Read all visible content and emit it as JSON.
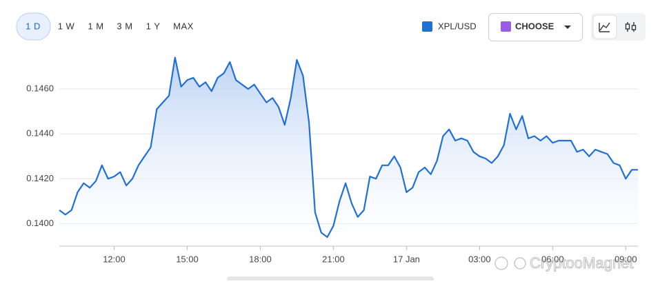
{
  "toolbar": {
    "ranges": [
      "1 D",
      "1 W",
      "1 M",
      "3 M",
      "1 Y",
      "MAX"
    ],
    "choose": "CHOOSE"
  },
  "watermark": "CryptooMagnet",
  "chart_data": {
    "type": "area",
    "x": [
      9.75,
      10,
      10.25,
      10.5,
      10.75,
      11,
      11.25,
      11.5,
      11.75,
      12,
      12.25,
      12.5,
      12.75,
      13,
      13.25,
      13.5,
      13.75,
      14,
      14.25,
      14.5,
      14.75,
      15,
      15.25,
      15.5,
      15.75,
      16,
      16.25,
      16.5,
      16.75,
      17,
      17.25,
      17.5,
      17.75,
      18,
      18.25,
      18.5,
      18.75,
      19,
      19.25,
      19.5,
      19.75,
      20,
      20.25,
      20.5,
      20.75,
      21,
      21.25,
      21.5,
      21.75,
      22,
      22.25,
      22.5,
      22.75,
      23,
      23.25,
      23.5,
      23.75,
      24,
      24.25,
      24.5,
      24.75,
      25,
      25.25,
      25.5,
      25.75,
      26,
      26.25,
      26.5,
      26.75,
      27,
      27.25,
      27.5,
      27.75,
      28,
      28.25,
      28.5,
      28.75,
      29,
      29.25,
      29.5,
      29.75,
      30,
      30.25,
      30.5,
      30.75,
      31,
      31.25,
      31.5,
      31.75,
      32,
      32.25,
      32.5,
      32.75,
      33,
      33.25,
      33.5
    ],
    "series": [
      {
        "name": "XPL/USD",
        "color": "#1f6fd6",
        "values": [
          0.1406,
          0.1404,
          0.1406,
          0.1414,
          0.1418,
          0.1416,
          0.1419,
          0.1426,
          0.142,
          0.1421,
          0.1423,
          0.1417,
          0.142,
          0.1426,
          0.143,
          0.1434,
          0.1451,
          0.1454,
          0.1457,
          0.1474,
          0.1461,
          0.1464,
          0.1465,
          0.1461,
          0.1463,
          0.1459,
          0.1465,
          0.1467,
          0.1472,
          0.1464,
          0.1462,
          0.146,
          0.1462,
          0.1458,
          0.1454,
          0.1456,
          0.1452,
          0.1444,
          0.1456,
          0.1473,
          0.1466,
          0.1445,
          0.1405,
          0.1396,
          0.1394,
          0.1399,
          0.141,
          0.1418,
          0.1409,
          0.1403,
          0.1406,
          0.1421,
          0.142,
          0.1426,
          0.1426,
          0.143,
          0.1425,
          0.1414,
          0.1416,
          0.1423,
          0.1425,
          0.1422,
          0.1428,
          0.1439,
          0.1442,
          0.1437,
          0.1438,
          0.1437,
          0.1432,
          0.143,
          0.1429,
          0.1427,
          0.143,
          0.1435,
          0.1449,
          0.1442,
          0.1448,
          0.1438,
          0.1439,
          0.1437,
          0.1439,
          0.1436,
          0.1437,
          0.1437,
          0.1437,
          0.1432,
          0.1433,
          0.143,
          0.1433,
          0.1432,
          0.1431,
          0.1427,
          0.1426,
          0.142,
          0.1424,
          0.1424
        ]
      }
    ],
    "xlim": [
      9.75,
      33.5
    ],
    "xticks": [
      {
        "value": 12,
        "label": "12:00"
      },
      {
        "value": 15,
        "label": "15:00"
      },
      {
        "value": 18,
        "label": "18:00"
      },
      {
        "value": 21,
        "label": "21:00"
      },
      {
        "value": 24,
        "label": "17 Jan"
      },
      {
        "value": 27,
        "label": "03:00"
      },
      {
        "value": 30,
        "label": "06:00"
      },
      {
        "value": 33,
        "label": "09:00"
      }
    ],
    "ylim": [
      0.139,
      0.1476
    ],
    "yticks": [
      {
        "value": 0.14,
        "label": "0.1400"
      },
      {
        "value": 0.142,
        "label": "0.1420"
      },
      {
        "value": 0.144,
        "label": "0.1440"
      },
      {
        "value": 0.146,
        "label": "0.1460"
      }
    ],
    "grid": true
  }
}
